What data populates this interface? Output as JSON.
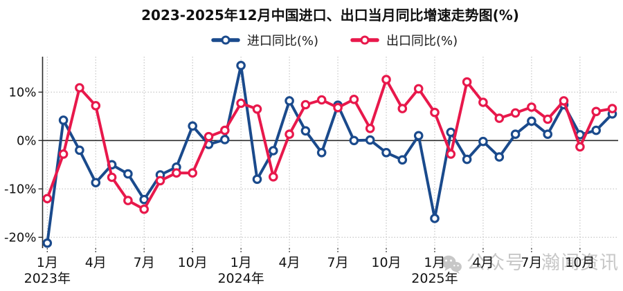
{
  "page": {
    "background": "#ffffff"
  },
  "chart_data": {
    "type": "line",
    "title": "2023-2025年12月中国进口、出口当月同比增速走势图(%)",
    "categories": [
      "2023年1月",
      "2023年2月",
      "2023年3月",
      "2023年4月",
      "2023年5月",
      "2023年6月",
      "2023年7月",
      "2023年8月",
      "2023年9月",
      "2023年10月",
      "2023年11月",
      "2023年12月",
      "2024年1月",
      "2024年2月",
      "2024年3月",
      "2024年4月",
      "2024年5月",
      "2024年6月",
      "2024年7月",
      "2024年8月",
      "2024年9月",
      "2024年10月",
      "2024年11月",
      "2024年12月",
      "2025年1月",
      "2025年2月",
      "2025年3月",
      "2025年4月",
      "2025年5月",
      "2025年6月",
      "2025年7月",
      "2025年8月",
      "2025年9月",
      "2025年10月",
      "2025年11月",
      "2025年12月"
    ],
    "series": [
      {
        "id": "imports",
        "name": "进口同比(%)",
        "color": "#1a4a8c",
        "values": [
          -21.2,
          4.2,
          -2.0,
          -8.7,
          -5.0,
          -6.9,
          -12.2,
          -7.1,
          -5.5,
          3.0,
          -0.8,
          0.2,
          15.5,
          -8.0,
          -2.1,
          8.2,
          2.0,
          -2.5,
          7.3,
          0.0,
          0.1,
          -2.5,
          -4.0,
          1.0,
          -16.1,
          1.7,
          -3.9,
          -0.2,
          -3.4,
          1.3,
          4.0,
          1.3,
          7.4,
          1.2,
          2.1,
          5.5
        ]
      },
      {
        "id": "exports",
        "name": "出口同比(%)",
        "color": "#e8184b",
        "values": [
          -12.0,
          -2.8,
          10.9,
          7.2,
          -7.6,
          -12.4,
          -14.2,
          -8.3,
          -6.7,
          -6.7,
          0.8,
          2.1,
          7.7,
          6.5,
          -7.5,
          1.3,
          7.4,
          8.4,
          6.8,
          8.5,
          2.5,
          12.6,
          6.6,
          10.7,
          5.8,
          -2.8,
          12.1,
          7.9,
          4.6,
          5.7,
          6.9,
          4.4,
          8.2,
          -1.3,
          6.0,
          6.6
        ]
      }
    ],
    "ylim": [
      -22.3,
      17.3
    ],
    "yticks": [
      {
        "value": 10,
        "label": "10%"
      },
      {
        "value": 0,
        "label": "0%"
      },
      {
        "value": -10,
        "label": "-10%"
      },
      {
        "value": -20,
        "label": "-20%"
      }
    ],
    "xticks": [
      {
        "index": 0,
        "label": "1月"
      },
      {
        "index": 3,
        "label": "4月"
      },
      {
        "index": 6,
        "label": "7月"
      },
      {
        "index": 9,
        "label": "10月"
      },
      {
        "index": 12,
        "label": "1月"
      },
      {
        "index": 15,
        "label": "4月"
      },
      {
        "index": 18,
        "label": "7月"
      },
      {
        "index": 21,
        "label": "10月"
      },
      {
        "index": 24,
        "label": "1月"
      },
      {
        "index": 27,
        "label": "4月"
      },
      {
        "index": 30,
        "label": "7月"
      },
      {
        "index": 33,
        "label": "10月"
      }
    ],
    "year_labels": [
      {
        "index": 0,
        "label": "2023年"
      },
      {
        "index": 12,
        "label": "2024年"
      },
      {
        "index": 24,
        "label": "2025年"
      }
    ],
    "grid": "dotted gray gridlines; solid dark zero line; legend top-center"
  },
  "watermark": {
    "icon": "wechat-icon",
    "text1": "公众号",
    "text2": "瀚闻资讯",
    "color": "#c7c7c7"
  }
}
